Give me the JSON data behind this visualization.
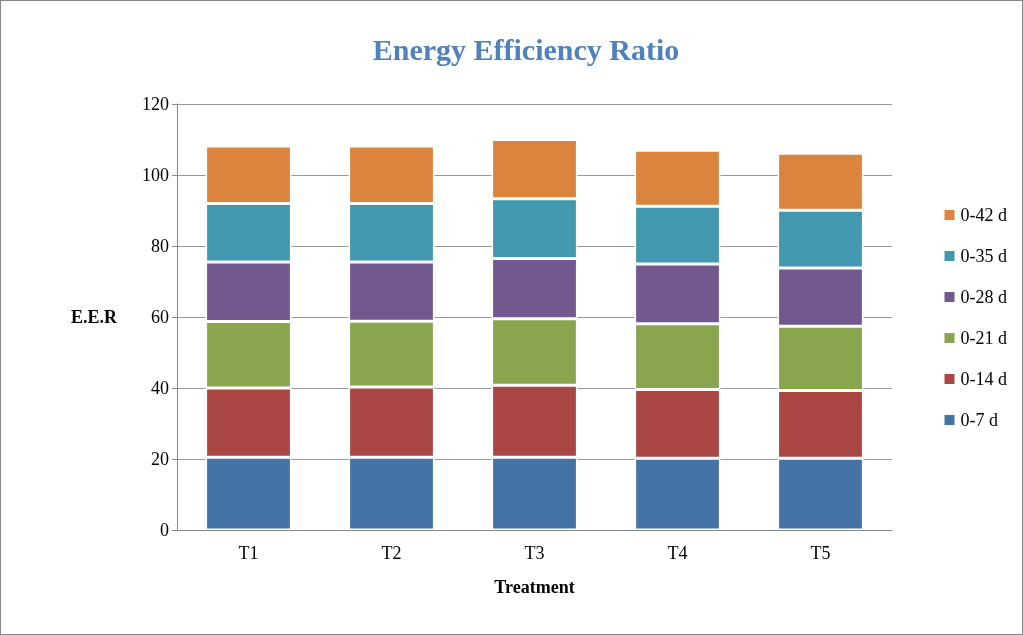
{
  "chart_data": {
    "type": "bar",
    "title": "Energy Efficiency Ratio",
    "xlabel": "Treatment",
    "ylabel": "E.E.R",
    "categories": [
      "T1",
      "T2",
      "T3",
      "T4",
      "T5"
    ],
    "stacked": true,
    "ylim": [
      0,
      120
    ],
    "yticks": [
      0,
      20,
      40,
      60,
      80,
      100,
      120
    ],
    "grid": "y",
    "legend": "right",
    "series": [
      {
        "name": "0-7 d",
        "color": "#4572a7",
        "values": [
          20.5,
          20.5,
          20.5,
          20.2,
          20.2
        ]
      },
      {
        "name": "0-14 d",
        "color": "#aa4643",
        "values": [
          19.5,
          19.8,
          20.3,
          19.4,
          19.1
        ]
      },
      {
        "name": "0-21 d",
        "color": "#89a54e",
        "values": [
          18.7,
          18.5,
          18.7,
          18.5,
          18.1
        ]
      },
      {
        "name": "0-28 d",
        "color": "#71588f",
        "values": [
          16.8,
          16.7,
          17.0,
          16.8,
          16.4
        ]
      },
      {
        "name": "0-35 d",
        "color": "#4198af",
        "values": [
          16.5,
          16.5,
          16.8,
          16.3,
          16.3
        ]
      },
      {
        "name": "0-42 d",
        "color": "#db843d",
        "values": [
          16.2,
          16.2,
          16.7,
          15.8,
          16.0
        ]
      }
    ]
  }
}
